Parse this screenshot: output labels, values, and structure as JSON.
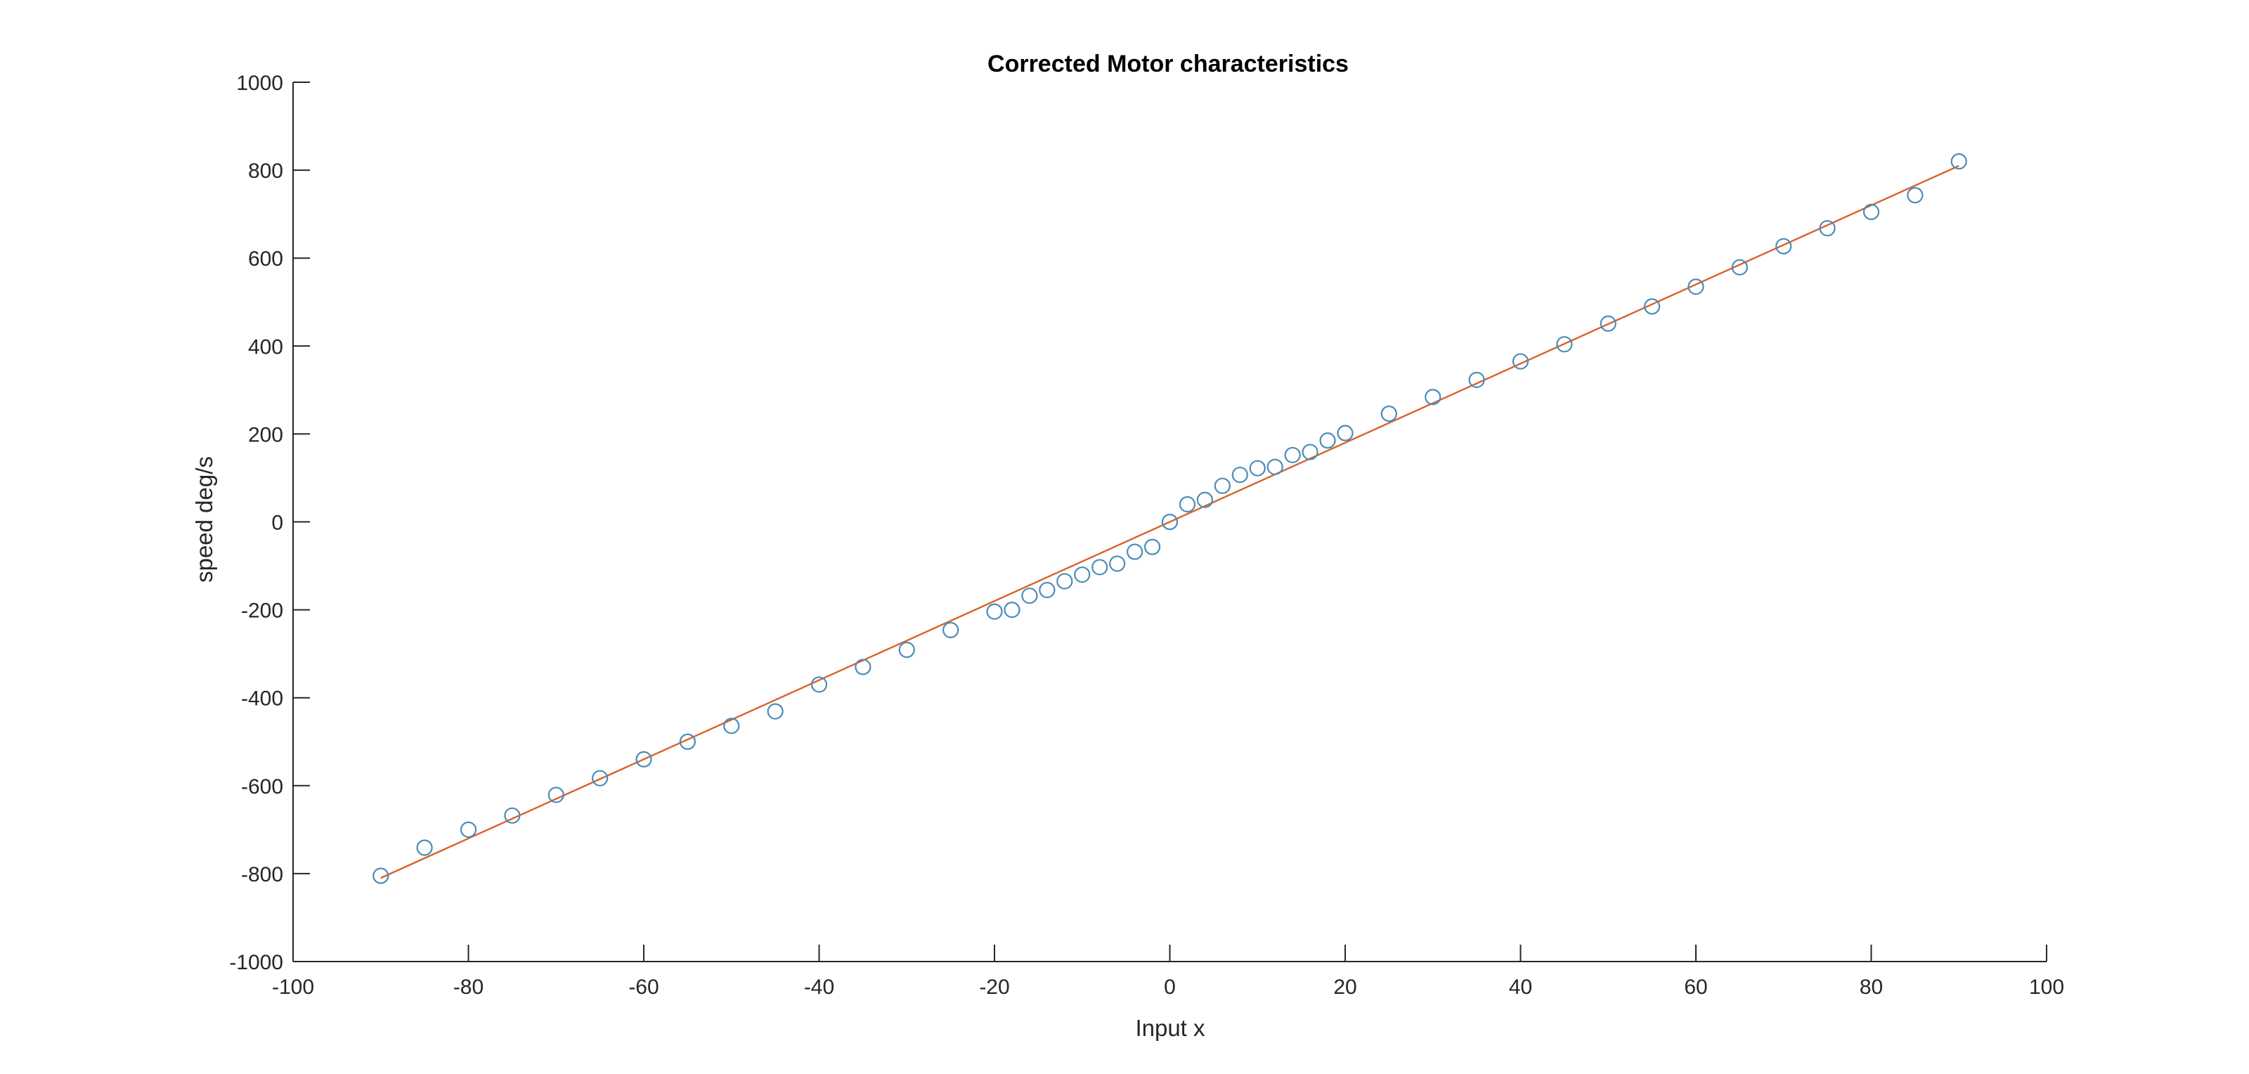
{
  "chart_data": {
    "type": "scatter",
    "title": "Corrected Motor characteristics",
    "xlabel": "Input x",
    "ylabel": "speed deg/s",
    "xlim": [
      -100,
      100
    ],
    "ylim": [
      -1000,
      1000
    ],
    "xticks": [
      -100,
      -80,
      -60,
      -40,
      -20,
      0,
      20,
      40,
      60,
      80,
      100
    ],
    "yticks": [
      -1000,
      -800,
      -600,
      -400,
      -200,
      0,
      200,
      400,
      600,
      800,
      1000
    ],
    "grid": false,
    "legend": "none",
    "colors": {
      "markers": "#4a8cb8",
      "fit_line": "#d9622b",
      "axes": "#262626"
    },
    "series": [
      {
        "type": "scatter",
        "marker": "circle",
        "x": [
          -90,
          -85,
          -80,
          -75,
          -70,
          -65,
          -60,
          -55,
          -50,
          -45,
          -40,
          -35,
          -30,
          -25,
          -20,
          -18,
          -16,
          -14,
          -12,
          -10,
          -8,
          -6,
          -4,
          -2,
          0,
          2,
          4,
          6,
          8,
          10,
          12,
          14,
          16,
          18,
          20,
          25,
          30,
          35,
          40,
          45,
          50,
          55,
          60,
          65,
          70,
          75,
          80,
          85,
          90
        ],
        "y": [
          -805,
          -741,
          -700,
          -668,
          -621,
          -583,
          -540,
          -500,
          -464,
          -431,
          -370,
          -330,
          -291,
          -246,
          -204,
          -200,
          -168,
          -155,
          -135,
          -120,
          -103,
          -95,
          -68,
          -57,
          0,
          40,
          50,
          82,
          107,
          122,
          125,
          152,
          159,
          185,
          202,
          246,
          284,
          323,
          365,
          404,
          451,
          490,
          535,
          579,
          627,
          668,
          705,
          743,
          820
        ]
      },
      {
        "type": "line",
        "x": [
          -90,
          90
        ],
        "y": [
          -810,
          810
        ]
      }
    ]
  }
}
